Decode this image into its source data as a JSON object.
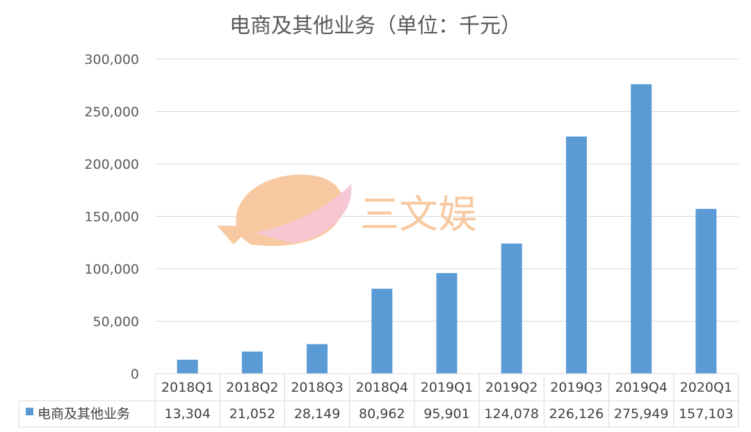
{
  "chart_data": {
    "type": "bar",
    "title": "电商及其他业务（单位：千元）",
    "categories": [
      "2018Q1",
      "2018Q2",
      "2018Q3",
      "2018Q4",
      "2019Q1",
      "2019Q2",
      "2019Q3",
      "2019Q4",
      "2020Q1"
    ],
    "series": [
      {
        "name": "电商及其他业务",
        "values": [
          13304,
          21052,
          28149,
          80962,
          95901,
          124078,
          226126,
          275949,
          157103
        ],
        "labels": [
          "13,304",
          "21,052",
          "28,149",
          "80,962",
          "95,901",
          "124,078",
          "226,126",
          "275,949",
          "157,103"
        ],
        "color": "#5b9bd5"
      }
    ],
    "ylim": [
      0,
      300000
    ],
    "yticks": [
      0,
      50000,
      100000,
      150000,
      200000,
      250000,
      300000
    ],
    "ytick_labels": [
      "0",
      "50,000",
      "100,000",
      "150,000",
      "200,000",
      "250,000",
      "300,000"
    ],
    "grid": true,
    "data_table": true,
    "legend": "data-table-left"
  },
  "watermark": {
    "text": "三文娱"
  },
  "colors": {
    "bar": "#5b9bd5",
    "grid": "#d9d9d9",
    "text": "#595959",
    "watermark_orange": "#f8c9a1",
    "watermark_pink": "#f7c6d6"
  }
}
